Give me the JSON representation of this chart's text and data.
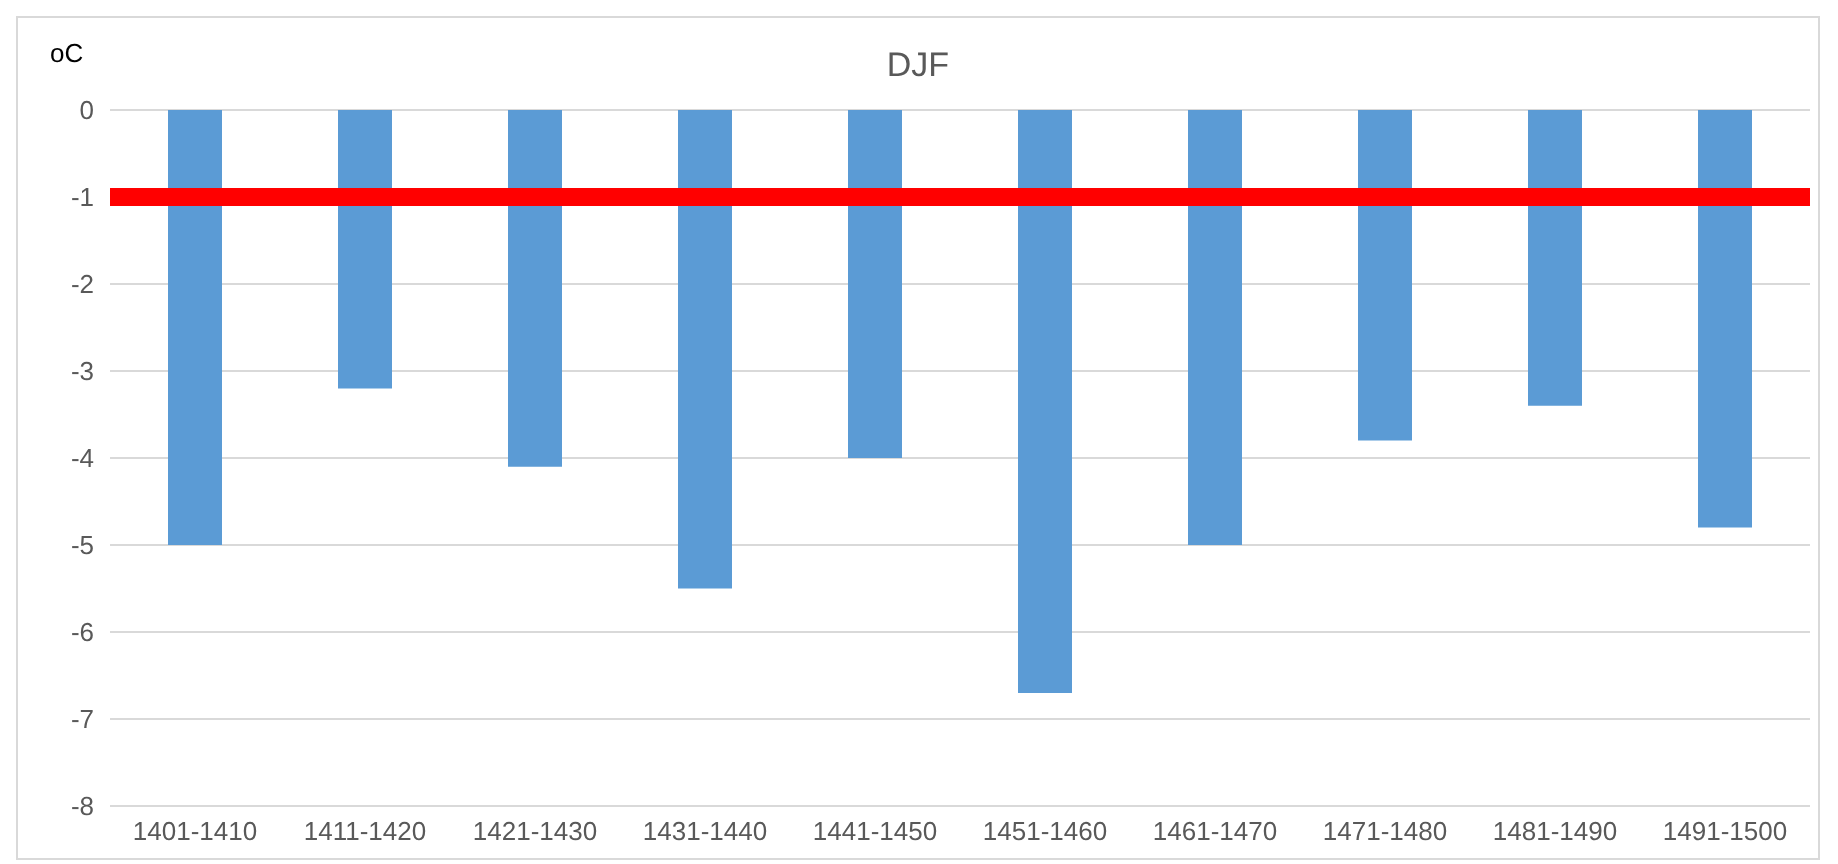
{
  "chart_data": {
    "type": "bar",
    "title": "DJF",
    "ylabel": "oC",
    "categories": [
      "1401-1410",
      "1411-1420",
      "1421-1430",
      "1431-1440",
      "1441-1450",
      "1451-1460",
      "1461-1470",
      "1471-1480",
      "1481-1490",
      "1491-1500"
    ],
    "values": [
      -5.0,
      -3.2,
      -4.1,
      -5.5,
      -4.0,
      -6.7,
      -5.0,
      -3.8,
      -3.4,
      -4.8
    ],
    "color": "#5b9bd5",
    "ylim": [
      -8,
      0
    ],
    "yticks": [
      -8,
      -7,
      -6,
      -5,
      -4,
      -3,
      -2,
      -1,
      0
    ],
    "grid": "y",
    "ref_lines": [
      {
        "axis": "y",
        "value": -1,
        "color": "#ff0000"
      }
    ]
  }
}
